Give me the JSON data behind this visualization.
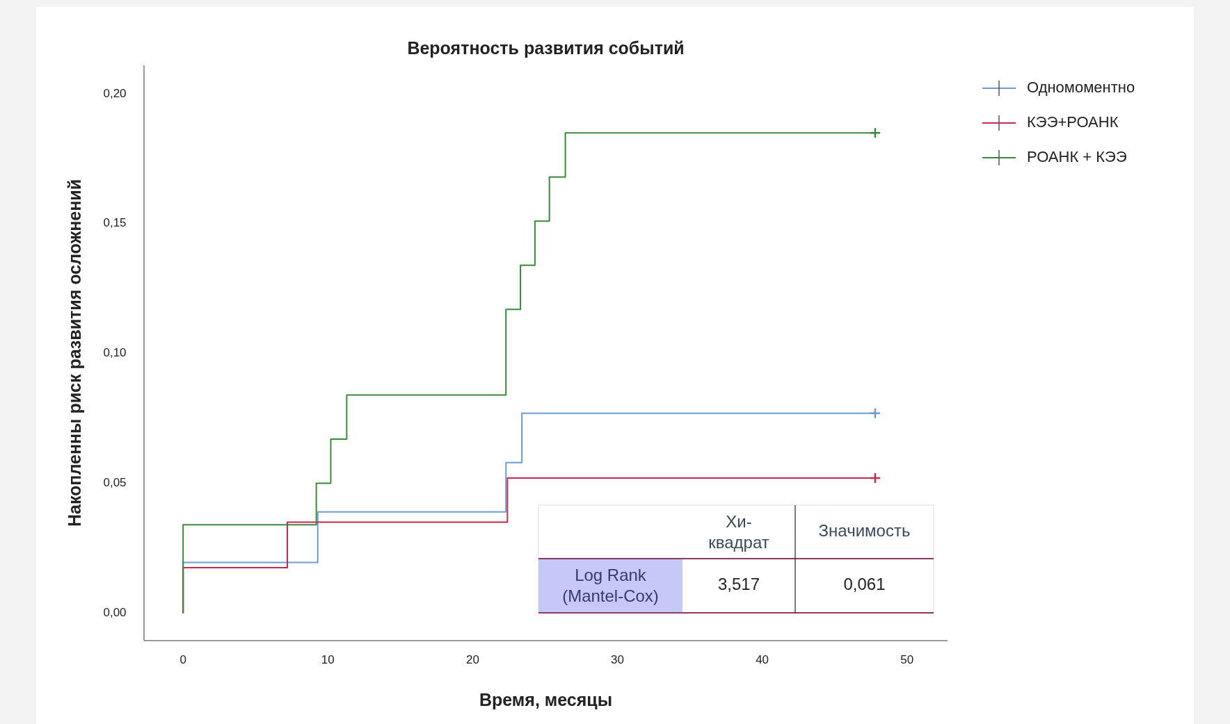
{
  "chart_data": {
    "type": "step",
    "title": "Вероятность развития событий",
    "xlabel": "Время, месяцы",
    "ylabel": "Накопленны риск развития осложнений",
    "xlim": [
      -2.7,
      52.8
    ],
    "ylim": [
      -0.0106,
      0.211
    ],
    "xticks": [
      0,
      10,
      20,
      30,
      40,
      50
    ],
    "yticks": [
      {
        "value": 0,
        "label": "0,00"
      },
      {
        "value": 0.05,
        "label": "0,05"
      },
      {
        "value": 0.1,
        "label": "0,10"
      },
      {
        "value": 0.15,
        "label": "0,15"
      },
      {
        "value": 0.2,
        "label": "0,20"
      }
    ],
    "grid": false,
    "legend": "top right",
    "series": [
      {
        "name": "Одномоментно",
        "color": "#6a9bd8",
        "x": [
          0,
          0,
          9.3,
          22.3,
          23.4,
          47.8
        ],
        "values": [
          0,
          0.0195,
          0.039,
          0.058,
          0.077,
          0.077
        ]
      },
      {
        "name": "КЭЭ+РОАНК",
        "color": "#c8284e",
        "x": [
          0,
          0,
          7.2,
          22.4,
          47.8
        ],
        "values": [
          0,
          0.0175,
          0.035,
          0.052,
          0.052
        ]
      },
      {
        "name": "РОАНК + КЭЭ",
        "color": "#3a8a3a",
        "x": [
          0,
          0,
          9.2,
          10.2,
          11.3,
          22.3,
          23.3,
          24.3,
          25.3,
          26.4,
          47.8
        ],
        "values": [
          0,
          0.034,
          0.05,
          0.067,
          0.084,
          0.117,
          0.134,
          0.151,
          0.168,
          0.185,
          0.185
        ]
      },
      {
        "type": "scatter",
        "marker": "cross",
        "color": "#6a9bd8",
        "x": [
          47.8
        ],
        "values": [
          0.077
        ]
      },
      {
        "type": "scatter",
        "marker": "cross",
        "color": "#c8284e",
        "x": [
          47.8
        ],
        "values": [
          0.052
        ]
      },
      {
        "type": "scatter",
        "marker": "cross",
        "color": "#3a8a3a",
        "x": [
          47.8
        ],
        "values": [
          0.185
        ]
      }
    ],
    "annotations": [
      "Хи-квадрат",
      "Значимость",
      "Log Rank (Mantel-Cox)",
      "3,517",
      "0,061"
    ]
  }
}
